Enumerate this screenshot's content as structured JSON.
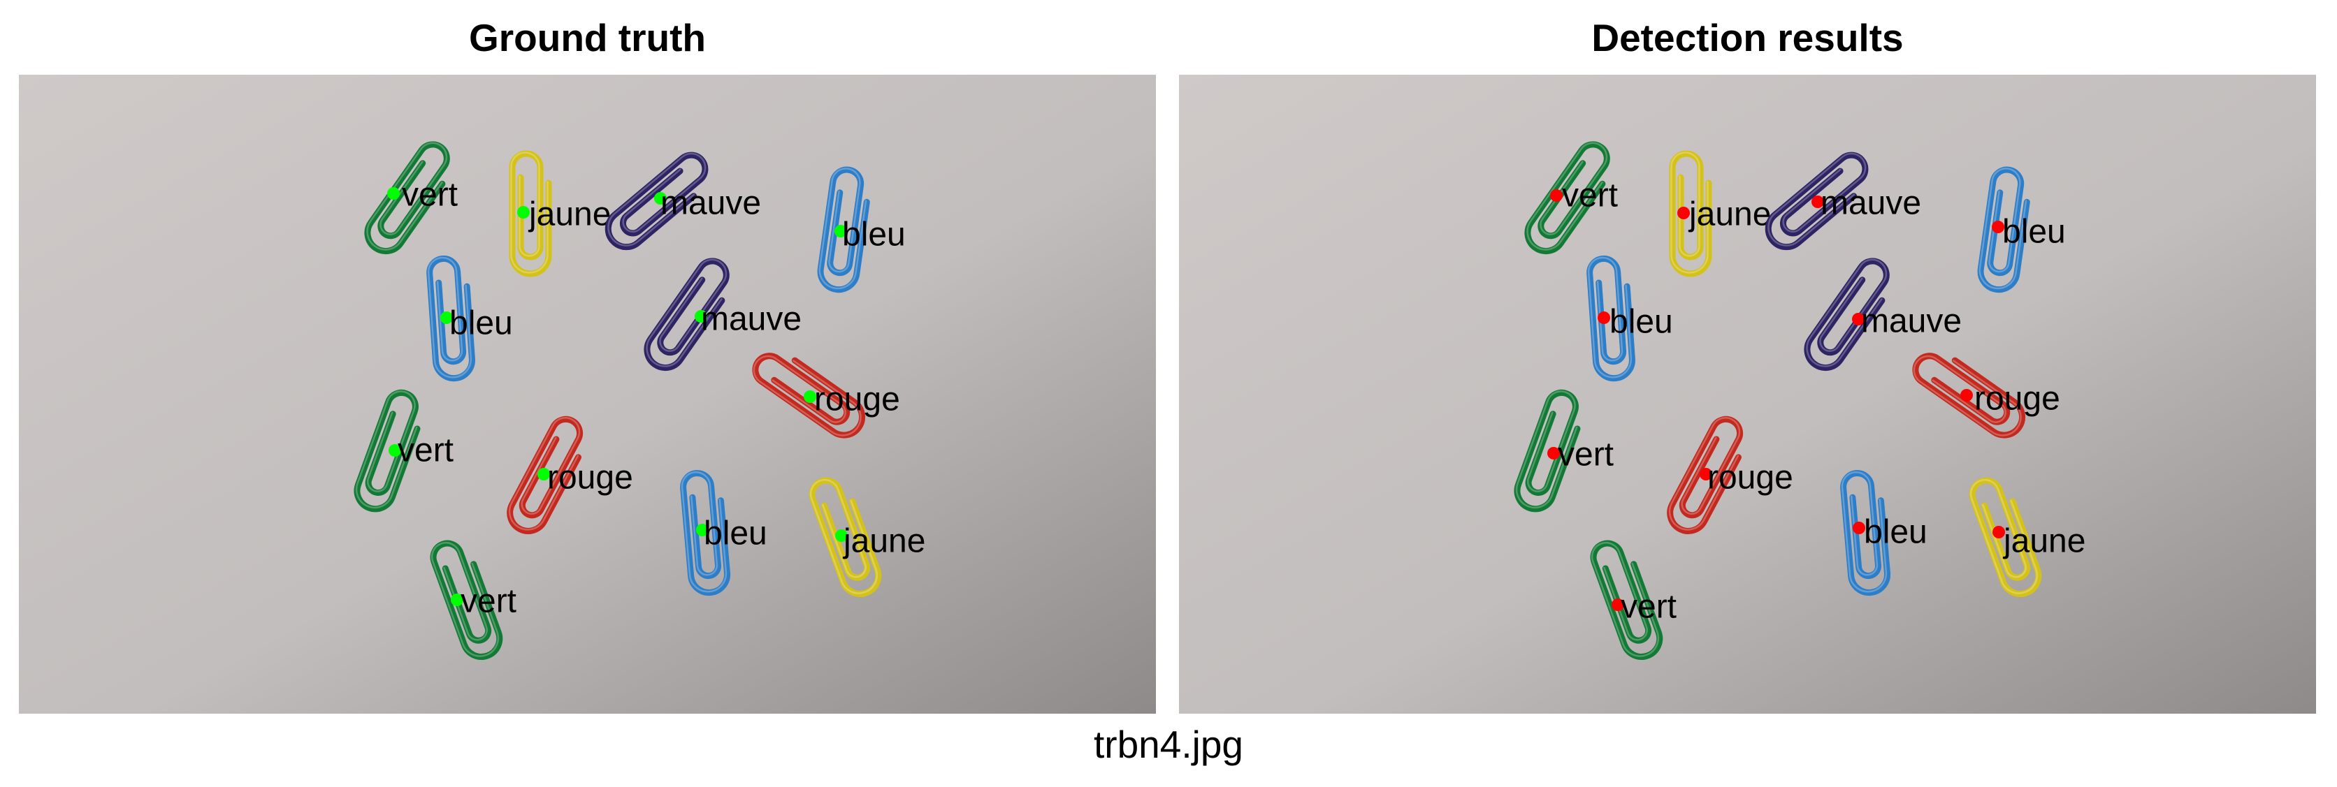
{
  "figure": {
    "caption": "trbn4.jpg",
    "colors": {
      "gt_marker": "#00ff00",
      "pred_marker": "#ff0000",
      "vert": "#137a36",
      "jaune": "#d4c21a",
      "mauve": "#2e2363",
      "bleu": "#2e7ec7",
      "rouge": "#c3291e",
      "background_light": "#cfc9c8",
      "background_dark": "#8e8a89"
    },
    "panels": [
      {
        "title": "Ground truth",
        "marker_color": "#00ff00",
        "objects": [
          {
            "label": "vert",
            "color": "vert"
          },
          {
            "label": "jaune",
            "color": "jaune"
          },
          {
            "label": "mauve",
            "color": "mauve"
          },
          {
            "label": "bleu",
            "color": "bleu"
          },
          {
            "label": "bleu",
            "color": "bleu"
          },
          {
            "label": "mauve",
            "color": "mauve"
          },
          {
            "label": "rouge",
            "color": "rouge"
          },
          {
            "label": "vert",
            "color": "vert"
          },
          {
            "label": "rouge",
            "color": "rouge"
          },
          {
            "label": "bleu",
            "color": "bleu"
          },
          {
            "label": "jaune",
            "color": "jaune"
          },
          {
            "label": "vert",
            "color": "vert"
          }
        ]
      },
      {
        "title": "Detection results",
        "marker_color": "#ff0000",
        "objects": [
          {
            "label": "vert",
            "color": "vert"
          },
          {
            "label": "jaune",
            "color": "jaune"
          },
          {
            "label": "mauve",
            "color": "mauve"
          },
          {
            "label": "bleu",
            "color": "bleu"
          },
          {
            "label": "bleu",
            "color": "bleu"
          },
          {
            "label": "mauve",
            "color": "mauve"
          },
          {
            "label": "rouge",
            "color": "rouge"
          },
          {
            "label": "vert",
            "color": "vert"
          },
          {
            "label": "rouge",
            "color": "rouge"
          },
          {
            "label": "bleu",
            "color": "bleu"
          },
          {
            "label": "jaune",
            "color": "jaune"
          },
          {
            "label": "vert",
            "color": "vert"
          }
        ]
      }
    ]
  }
}
